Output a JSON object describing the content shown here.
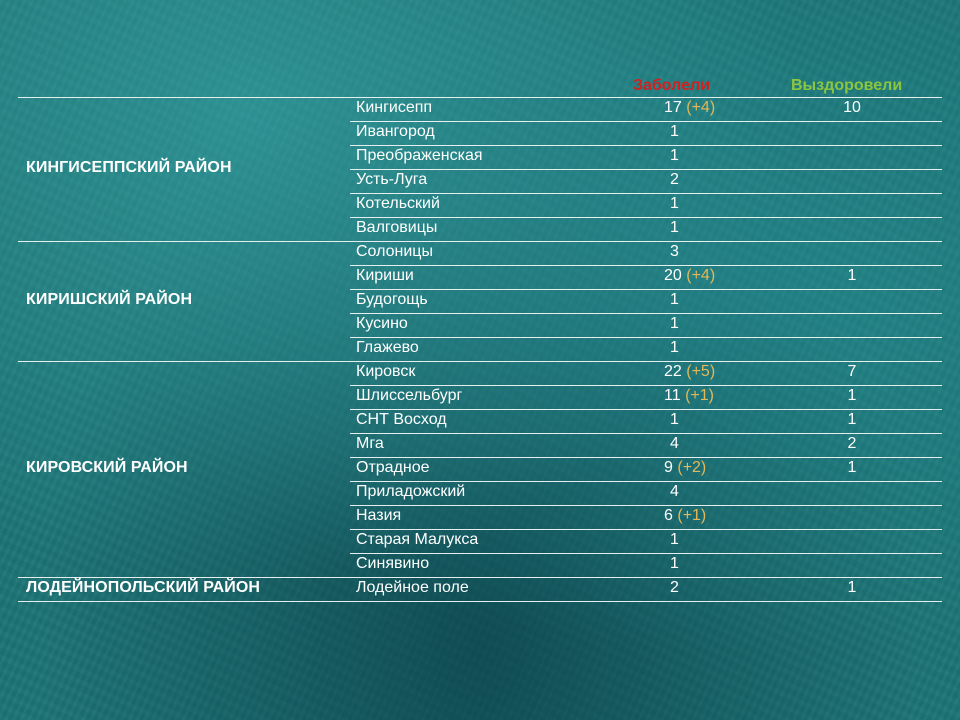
{
  "headers": {
    "sick": "Заболели",
    "recovered": "Выздоровели"
  },
  "districts": [
    {
      "name": "КИНГИСЕППСКИЙ РАЙОН",
      "rows": [
        {
          "place": "Кингисепп",
          "sick": "17",
          "delta": "(+4)",
          "recovered": "10"
        },
        {
          "place": "Ивангород",
          "sick": "1",
          "delta": "",
          "recovered": ""
        },
        {
          "place": "Преображенская",
          "sick": "1",
          "delta": "",
          "recovered": ""
        },
        {
          "place": "Усть-Луга",
          "sick": "2",
          "delta": "",
          "recovered": ""
        },
        {
          "place": "Котельский",
          "sick": "1",
          "delta": "",
          "recovered": ""
        },
        {
          "place": "Валговицы",
          "sick": "1",
          "delta": "",
          "recovered": ""
        }
      ]
    },
    {
      "name": "КИРИШСКИЙ РАЙОН",
      "rows": [
        {
          "place": "Солоницы",
          "sick": "3",
          "delta": "",
          "recovered": ""
        },
        {
          "place": "Кириши",
          "sick": "20",
          "delta": "(+4)",
          "recovered": "1"
        },
        {
          "place": "Будогощь",
          "sick": "1",
          "delta": "",
          "recovered": ""
        },
        {
          "place": "Кусино",
          "sick": "1",
          "delta": "",
          "recovered": ""
        },
        {
          "place": "Глажево",
          "sick": "1",
          "delta": "",
          "recovered": ""
        }
      ]
    },
    {
      "name": "КИРОВСКИЙ РАЙОН",
      "rows": [
        {
          "place": "Кировск",
          "sick": "22",
          "delta": "(+5)",
          "recovered": "7"
        },
        {
          "place": "Шлиссельбург",
          "sick": "11",
          "delta": "(+1)",
          "recovered": "1"
        },
        {
          "place": "СНТ Восход",
          "sick": "1",
          "delta": "",
          "recovered": "1"
        },
        {
          "place": "Мга",
          "sick": "4",
          "delta": "",
          "recovered": "2"
        },
        {
          "place": "Отрадное",
          "sick": "9",
          "delta": "(+2)",
          "recovered": "1"
        },
        {
          "place": "Приладожский",
          "sick": "4",
          "delta": "",
          "recovered": ""
        },
        {
          "place": "Назия",
          "sick": "6",
          "delta": "(+1)",
          "recovered": ""
        },
        {
          "place": "Старая Малукса",
          "sick": "1",
          "delta": "",
          "recovered": ""
        },
        {
          "place": "Синявино",
          "sick": "1",
          "delta": "",
          "recovered": ""
        }
      ]
    },
    {
      "name": "ЛОДЕЙНОПОЛЬСКИЙ РАЙОН",
      "rows": [
        {
          "place": "Лодейное поле",
          "sick": "2",
          "delta": "",
          "recovered": "1"
        }
      ]
    }
  ]
}
